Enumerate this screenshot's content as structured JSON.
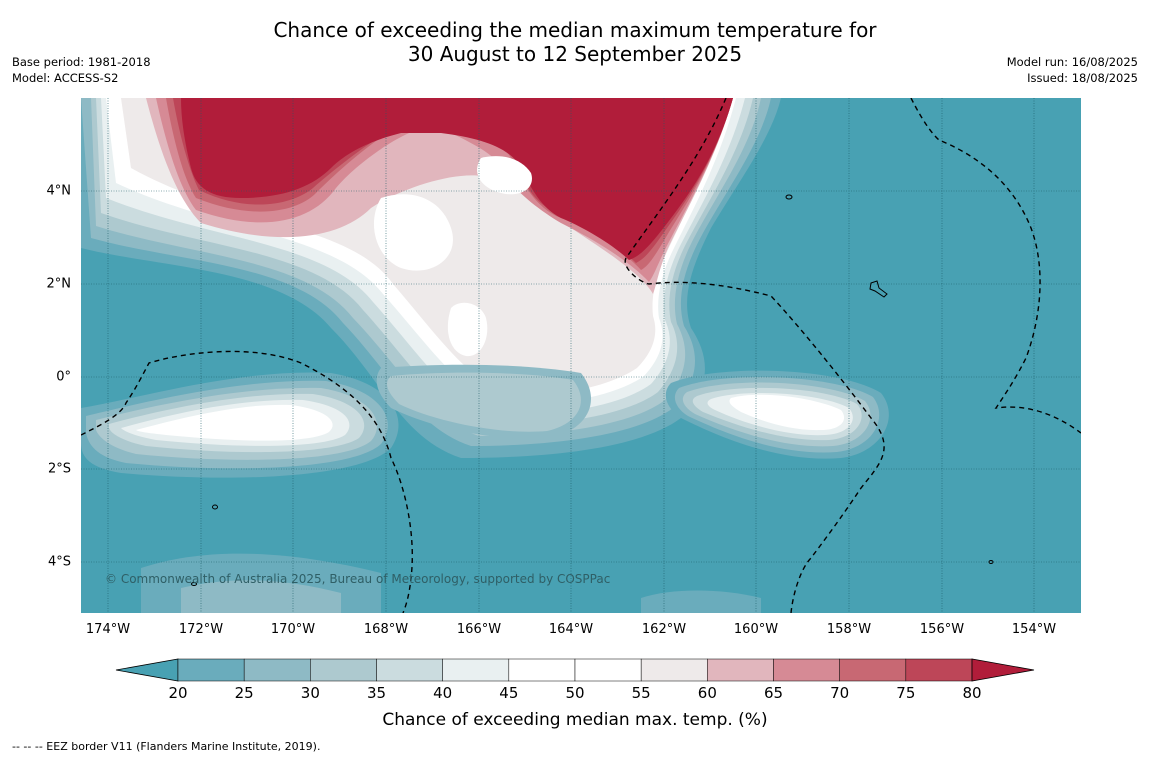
{
  "title_line1": "Chance of exceeding the median maximum temperature for",
  "title_line2": "30 August to 12 September 2025",
  "meta_left": {
    "base_period": "Base period: 1981-2018",
    "model": "Model: ACCESS-S2"
  },
  "meta_right": {
    "model_run": "Model run: 16/08/2025",
    "issued": "Issued: 18/08/2025"
  },
  "copyright": "© Commonwealth of Australia 2025, Bureau of Meteorology, supported by COSPPac",
  "lat_labels": [
    "4°N",
    "2°N",
    "0°",
    "2°S",
    "4°S"
  ],
  "lon_labels": [
    "174°W",
    "172°W",
    "170°W",
    "168°W",
    "166°W",
    "164°W",
    "162°W",
    "160°W",
    "158°W",
    "156°W",
    "154°W"
  ],
  "colorbar": {
    "ticks": [
      "20",
      "25",
      "30",
      "35",
      "40",
      "45",
      "50",
      "55",
      "60",
      "65",
      "70",
      "75",
      "80"
    ],
    "label": "Chance of exceeding median max. temp. (%)",
    "colors": [
      "#48a1b3",
      "#6aacbc",
      "#8ebac5",
      "#adc9cf",
      "#cbdcdf",
      "#e9f0f1",
      "#ffffff",
      "#ffffff",
      "#eeeaea",
      "#e1b6bd",
      "#d68a95",
      "#c86873",
      "#bd4658",
      "#b11d3a"
    ]
  },
  "footnote": "--  --  -- EEZ border V11 (Flanders Marine Institute, 2019)."
}
